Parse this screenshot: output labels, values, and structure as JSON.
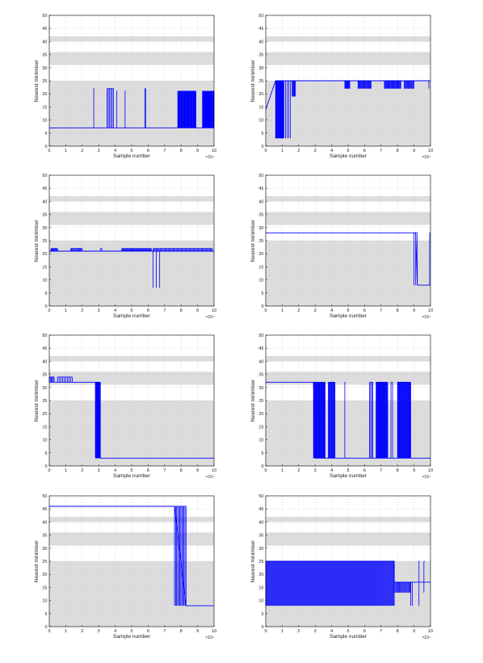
{
  "colors": {
    "band": "#dcdcdc",
    "line": "#0000ff",
    "grid": "#c8c8c8",
    "axis": "#000000",
    "background": "#ffffff"
  },
  "chart_data": [
    {
      "type": "line",
      "xlabel": "Sample number",
      "ylabel": "Nearest minimiser",
      "xlim": [
        0,
        10
      ],
      "ylim": [
        0,
        50
      ],
      "x_multiplier": "×10⁴",
      "x_ticks": [
        0,
        1,
        2,
        3,
        4,
        5,
        6,
        7,
        8,
        9,
        10
      ],
      "y_ticks": [
        0,
        5,
        10,
        15,
        20,
        25,
        30,
        35,
        40,
        45,
        50
      ],
      "shaded_bands": [
        [
          0,
          25
        ],
        [
          31,
          36
        ],
        [
          40,
          42
        ]
      ],
      "grid": true,
      "series": [
        {
          "baseline": 7,
          "steps": [
            [
              0,
              7
            ],
            [
              10,
              7
            ]
          ],
          "spikes": [
            {
              "from": 2.7,
              "to": 2.75,
              "low": 7,
              "high": 22,
              "density": 1
            },
            {
              "from": 3.5,
              "to": 3.9,
              "low": 7,
              "high": 22,
              "density": 6
            },
            {
              "from": 4.1,
              "to": 4.15,
              "low": 7,
              "high": 21,
              "density": 1
            },
            {
              "from": 4.6,
              "to": 4.65,
              "low": 7,
              "high": 21,
              "density": 1
            },
            {
              "from": 5.8,
              "to": 5.85,
              "low": 7,
              "high": 22,
              "density": 2
            },
            {
              "from": 7.8,
              "to": 8.9,
              "low": 7,
              "high": 21,
              "density": 40
            },
            {
              "from": 9.3,
              "to": 10,
              "low": 7,
              "high": 21,
              "density": 30
            }
          ]
        }
      ]
    },
    {
      "type": "line",
      "xlabel": "Sample number",
      "ylabel": "Nearest minimiser",
      "xlim": [
        0,
        10
      ],
      "ylim": [
        0,
        50
      ],
      "x_multiplier": "×10⁴",
      "x_ticks": [
        0,
        1,
        2,
        3,
        4,
        5,
        6,
        7,
        8,
        9,
        10
      ],
      "y_ticks": [
        0,
        5,
        10,
        15,
        20,
        25,
        30,
        35,
        40,
        45,
        50
      ],
      "shaded_bands": [
        [
          0,
          25
        ],
        [
          31,
          36
        ],
        [
          40,
          42
        ]
      ],
      "grid": true,
      "series": [
        {
          "baseline": 25,
          "steps": [
            [
              0,
              14
            ],
            [
              0.6,
              25
            ],
            [
              10,
              25
            ]
          ],
          "spikes": [
            {
              "from": 0.6,
              "to": 1.1,
              "low": 3,
              "high": 25,
              "density": 20
            },
            {
              "from": 1.2,
              "to": 1.5,
              "low": 3,
              "high": 25,
              "density": 4
            },
            {
              "from": 1.6,
              "to": 1.8,
              "low": 19,
              "high": 25,
              "density": 6
            },
            {
              "from": 4.8,
              "to": 5.1,
              "low": 22,
              "high": 25,
              "density": 10
            },
            {
              "from": 5.6,
              "to": 6.4,
              "low": 22,
              "high": 25,
              "density": 20
            },
            {
              "from": 7.2,
              "to": 8.2,
              "low": 22,
              "high": 25,
              "density": 25
            },
            {
              "from": 8.4,
              "to": 9.0,
              "low": 22,
              "high": 25,
              "density": 14
            },
            {
              "from": 9.9,
              "to": 9.95,
              "low": 22,
              "high": 25,
              "density": 1
            }
          ]
        }
      ]
    },
    {
      "type": "line",
      "xlabel": "Sample number",
      "ylabel": "Nearest minimiser",
      "xlim": [
        0,
        10
      ],
      "ylim": [
        0,
        50
      ],
      "x_multiplier": "×10⁴",
      "x_ticks": [
        0,
        1,
        2,
        3,
        4,
        5,
        6,
        7,
        8,
        9,
        10
      ],
      "y_ticks": [
        0,
        5,
        10,
        15,
        20,
        25,
        30,
        35,
        40,
        45,
        50
      ],
      "shaded_bands": [
        [
          0,
          25
        ],
        [
          31,
          36
        ],
        [
          40,
          42
        ]
      ],
      "grid": true,
      "series": [
        {
          "baseline": 21,
          "steps": [
            [
              0,
              21
            ],
            [
              10,
              21
            ]
          ],
          "spikes": [
            {
              "from": 0.1,
              "to": 0.5,
              "low": 21,
              "high": 22,
              "density": 10
            },
            {
              "from": 1.3,
              "to": 2.0,
              "low": 21,
              "high": 22,
              "density": 14
            },
            {
              "from": 3.1,
              "to": 3.2,
              "low": 21,
              "high": 22,
              "density": 2
            },
            {
              "from": 4.4,
              "to": 6.2,
              "low": 21,
              "high": 22,
              "density": 40
            },
            {
              "from": 6.3,
              "to": 9.9,
              "low": 21,
              "high": 22,
              "density": 60
            },
            {
              "from": 6.3,
              "to": 6.5,
              "low": 7,
              "high": 21,
              "density": 2
            },
            {
              "from": 6.7,
              "to": 6.75,
              "low": 7,
              "high": 21,
              "density": 1
            }
          ]
        }
      ]
    },
    {
      "type": "line",
      "xlabel": "Sample number",
      "ylabel": "Nearest minimiser",
      "xlim": [
        0,
        10
      ],
      "ylim": [
        0,
        50
      ],
      "x_multiplier": "×10⁴",
      "x_ticks": [
        0,
        1,
        2,
        3,
        4,
        5,
        6,
        7,
        8,
        9,
        10
      ],
      "y_ticks": [
        0,
        5,
        10,
        15,
        20,
        25,
        30,
        35,
        40,
        45,
        50
      ],
      "shaded_bands": [
        [
          0,
          25
        ],
        [
          31,
          36
        ],
        [
          40,
          42
        ]
      ],
      "grid": true,
      "series": [
        {
          "baseline": 28,
          "steps": [
            [
              0,
              28
            ],
            [
              9.1,
              28
            ],
            [
              9.2,
              8
            ],
            [
              10,
              8
            ]
          ],
          "spikes": [
            {
              "from": 9.0,
              "to": 9.2,
              "low": 8,
              "high": 28,
              "density": 3
            },
            {
              "from": 9.95,
              "to": 10,
              "low": 8,
              "high": 28,
              "density": 1
            }
          ]
        }
      ]
    },
    {
      "type": "line",
      "xlabel": "Sample number",
      "ylabel": "Nearest minimiser",
      "xlim": [
        0,
        10
      ],
      "ylim": [
        0,
        50
      ],
      "x_multiplier": "×10⁴",
      "x_ticks": [
        0,
        1,
        2,
        3,
        4,
        5,
        6,
        7,
        8,
        9,
        10
      ],
      "y_ticks": [
        0,
        5,
        10,
        15,
        20,
        25,
        30,
        35,
        40,
        45,
        50
      ],
      "shaded_bands": [
        [
          0,
          25
        ],
        [
          31,
          36
        ],
        [
          40,
          42
        ]
      ],
      "grid": true,
      "series": [
        {
          "baseline": 3,
          "steps": [
            [
              0,
              32
            ],
            [
              2.9,
              32
            ],
            [
              3.1,
              3
            ],
            [
              10,
              3
            ]
          ],
          "spikes": [
            {
              "from": 0,
              "to": 0.3,
              "low": 32,
              "high": 34,
              "density": 6
            },
            {
              "from": 0.5,
              "to": 1.4,
              "low": 32,
              "high": 34,
              "density": 10
            },
            {
              "from": 2.8,
              "to": 3.1,
              "low": 3,
              "high": 32,
              "density": 30
            }
          ]
        }
      ]
    },
    {
      "type": "line",
      "xlabel": "Sample number",
      "ylabel": "Nearest minimiser",
      "xlim": [
        0,
        10
      ],
      "ylim": [
        0,
        50
      ],
      "x_multiplier": "×10⁴",
      "x_ticks": [
        0,
        1,
        2,
        3,
        4,
        5,
        6,
        7,
        8,
        9,
        10
      ],
      "y_ticks": [
        0,
        5,
        10,
        15,
        20,
        25,
        30,
        35,
        40,
        45,
        50
      ],
      "shaded_bands": [
        [
          0,
          25
        ],
        [
          31,
          36
        ],
        [
          40,
          42
        ]
      ],
      "grid": true,
      "series": [
        {
          "baseline": 3,
          "steps": [
            [
              0,
              32
            ],
            [
              2.9,
              32
            ],
            [
              3.0,
              3
            ],
            [
              10,
              3
            ]
          ],
          "spikes": [
            {
              "from": 2.9,
              "to": 3.6,
              "low": 3,
              "high": 32,
              "density": 25
            },
            {
              "from": 3.8,
              "to": 4.2,
              "low": 3,
              "high": 32,
              "density": 12
            },
            {
              "from": 4.8,
              "to": 4.85,
              "low": 3,
              "high": 32,
              "density": 1
            },
            {
              "from": 6.3,
              "to": 6.5,
              "low": 3,
              "high": 32,
              "density": 4
            },
            {
              "from": 6.7,
              "to": 7.4,
              "low": 3,
              "high": 32,
              "density": 25
            },
            {
              "from": 7.6,
              "to": 7.7,
              "low": 3,
              "high": 32,
              "density": 2
            },
            {
              "from": 8.0,
              "to": 8.8,
              "low": 3,
              "high": 32,
              "density": 25
            }
          ]
        }
      ]
    },
    {
      "type": "line",
      "xlabel": "Sample number",
      "ylabel": "Nearest minimiser",
      "xlim": [
        0,
        10
      ],
      "ylim": [
        0,
        50
      ],
      "x_multiplier": "×10⁴",
      "x_ticks": [
        0,
        1,
        2,
        3,
        4,
        5,
        6,
        7,
        8,
        9,
        10
      ],
      "y_ticks": [
        0,
        5,
        10,
        15,
        20,
        25,
        30,
        35,
        40,
        45,
        50
      ],
      "shaded_bands": [
        [
          0,
          25
        ],
        [
          31,
          36
        ],
        [
          40,
          42
        ]
      ],
      "grid": true,
      "series": [
        {
          "baseline": 8,
          "steps": [
            [
              0,
              46
            ],
            [
              7.6,
              46
            ],
            [
              8.3,
              8
            ],
            [
              10,
              8
            ]
          ],
          "spikes": [
            {
              "from": 7.6,
              "to": 8.3,
              "low": 8,
              "high": 46,
              "density": 12
            }
          ]
        }
      ]
    },
    {
      "type": "line",
      "xlabel": "Sample number",
      "ylabel": "Nearest minimiser",
      "xlim": [
        0,
        10
      ],
      "ylim": [
        0,
        50
      ],
      "x_multiplier": "×10⁴",
      "x_ticks": [
        0,
        1,
        2,
        3,
        4,
        5,
        6,
        7,
        8,
        9,
        10
      ],
      "y_ticks": [
        0,
        5,
        10,
        15,
        20,
        25,
        30,
        35,
        40,
        45,
        50
      ],
      "shaded_bands": [
        [
          0,
          25
        ],
        [
          31,
          36
        ],
        [
          40,
          42
        ]
      ],
      "grid": true,
      "series": [
        {
          "baseline": 25,
          "steps": [
            [
              0,
              25
            ],
            [
              7.8,
              25
            ],
            [
              7.8,
              17
            ],
            [
              10,
              17
            ]
          ],
          "spikes": [
            {
              "from": 0,
              "to": 7.8,
              "low": 8,
              "high": 25,
              "density": 160
            },
            {
              "from": 7.8,
              "to": 8.8,
              "low": 13,
              "high": 17,
              "density": 20
            },
            {
              "from": 8.8,
              "to": 8.9,
              "low": 8,
              "high": 17,
              "density": 2
            },
            {
              "from": 9.3,
              "to": 9.35,
              "low": 8,
              "high": 25,
              "density": 1
            },
            {
              "from": 9.6,
              "to": 9.65,
              "low": 13,
              "high": 25,
              "density": 1
            }
          ]
        }
      ]
    }
  ]
}
